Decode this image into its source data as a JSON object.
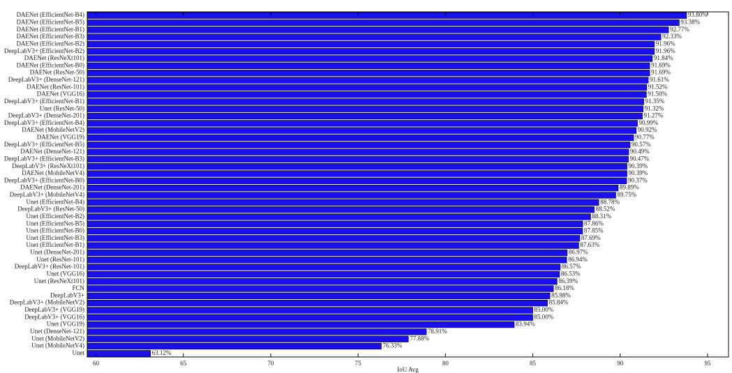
{
  "chart_data": {
    "type": "bar",
    "orientation": "horizontal",
    "categories": [
      "DAENet (EfficientNet-B4)",
      "DAENet (EfficientNet-B5)",
      "DAENet (EfficientNet-B1)",
      "DAENet (EfficientNet-B3)",
      "DAENet (EfficientNet-B2)",
      "DeepLabV3+ (EfficientNet-B2)",
      "DAENet (ResNeXt101)",
      "DAENet (EfficientNet-B0)",
      "DAENet (ResNet-50)",
      "DeepLabV3+ (DenseNet-121)",
      "DAENet (ResNet-101)",
      "DAENet (VGG16)",
      "DeepLabV3+ (EfficientNet-B1)",
      "Unet (ResNet-50)",
      "DeepLabV3+ (DenseNet-201)",
      "DeepLabV3+ (EfficientNet-B4)",
      "DAENet (MobileNetV2)",
      "DAENet (VGG19)",
      "DeepLabV3+ (EfficientNet-B5)",
      "DAENet (DenseNet-121)",
      "DeepLabV3+ (EfficientNet-B3)",
      "DeepLabV3+ (ResNeXt101)",
      "DAENet (MobileNetV4)",
      "DeepLabV3+ (EfficientNet-B0)",
      "DAENet (DenseNet-201)",
      "DeepLabV3+ (MobileNetV4)",
      "Unet (EfficientNet-B4)",
      "DeepLabV3+ (ResNet-50)",
      "Unet (EfficientNet-B2)",
      "Unet (EfficientNet-B5)",
      "Unet (EfficientNet-B0)",
      "Unet (EfficientNet-B3)",
      "Unet (EfficientNet-B1)",
      "Unet (DenseNet-201)",
      "Unet (ResNet-101)",
      "DeepLabV3+ (ResNet-101)",
      "Unet (VGG16)",
      "Unet (ResNeXt101)",
      "FCN",
      "DeepLabV3+",
      "DeepLabV3+ (MobileNetV2)",
      "DeepLabV3+ (VGG19)",
      "DeepLabV3+ (VGG16)",
      "Unet (VGG19)",
      "Unet (DenseNet-121)",
      "Unet (MobileNetV2)",
      "Unet (MobileNetV4)",
      "Unet"
    ],
    "values": [
      93.8,
      93.38,
      92.77,
      92.33,
      91.96,
      91.96,
      91.84,
      91.69,
      91.69,
      91.61,
      91.52,
      91.5,
      91.35,
      91.32,
      91.27,
      90.99,
      90.92,
      90.77,
      90.57,
      90.49,
      90.47,
      90.39,
      90.39,
      90.37,
      89.89,
      89.75,
      88.78,
      88.52,
      88.31,
      87.86,
      87.85,
      87.69,
      87.63,
      86.97,
      86.94,
      86.57,
      86.53,
      86.39,
      86.18,
      85.98,
      85.84,
      85.0,
      85.0,
      83.94,
      78.91,
      77.88,
      76.33,
      63.12
    ],
    "value_labels": [
      "93.80%",
      "93.38%",
      "92.77%",
      "92.33%",
      "91.96%",
      "91.96%",
      "91.84%",
      "91.69%",
      "91.69%",
      "91.61%",
      "91.52%",
      "91.50%",
      "91.35%",
      "91.32%",
      "91.27%",
      "90.99%",
      "90.92%",
      "90.77%",
      "90.57%",
      "90.49%",
      "90.47%",
      "90.39%",
      "90.39%",
      "90.37%",
      "89.89%",
      "89.75%",
      "88.78%",
      "88.52%",
      "88.31%",
      "87.86%",
      "87.85%",
      "87.69%",
      "87.63%",
      "86.97%",
      "86.94%",
      "86.57%",
      "86.53%",
      "86.39%",
      "86.18%",
      "85.98%",
      "85.84%",
      "85.00%",
      "85.00%",
      "83.94%",
      "78.91%",
      "77.88%",
      "76.33%",
      "63.12%"
    ],
    "xlabel": "IoU Avg",
    "ylabel": "",
    "title": "",
    "xlim": [
      59.5,
      96.2
    ],
    "xticks": [
      60,
      65,
      70,
      75,
      80,
      85,
      90,
      95
    ],
    "bar_color": "#1a10ee",
    "bar_edge_color": "#000000",
    "grid": false,
    "legend": "none"
  }
}
